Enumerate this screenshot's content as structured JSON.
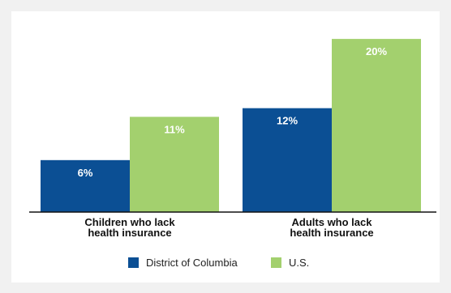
{
  "chart_data": {
    "type": "bar",
    "title": "",
    "categories": [
      [
        "Children who lack",
        "health insurance"
      ],
      [
        "Adults who lack",
        "health insurance"
      ]
    ],
    "series": [
      {
        "name": "District of Columbia",
        "values": [
          6,
          12
        ],
        "labels": [
          "6%",
          "12%"
        ],
        "color": "#0b4f94"
      },
      {
        "name": "U.S.",
        "values": [
          11,
          20
        ],
        "labels": [
          "11%",
          "20%"
        ],
        "color": "#a3d06e"
      }
    ],
    "ylim": [
      0,
      23
    ],
    "grid": false,
    "legend_position": "bottom",
    "colors": {
      "background": "#f1f1f1",
      "panel": "#ffffff",
      "axis": "#111111"
    }
  }
}
